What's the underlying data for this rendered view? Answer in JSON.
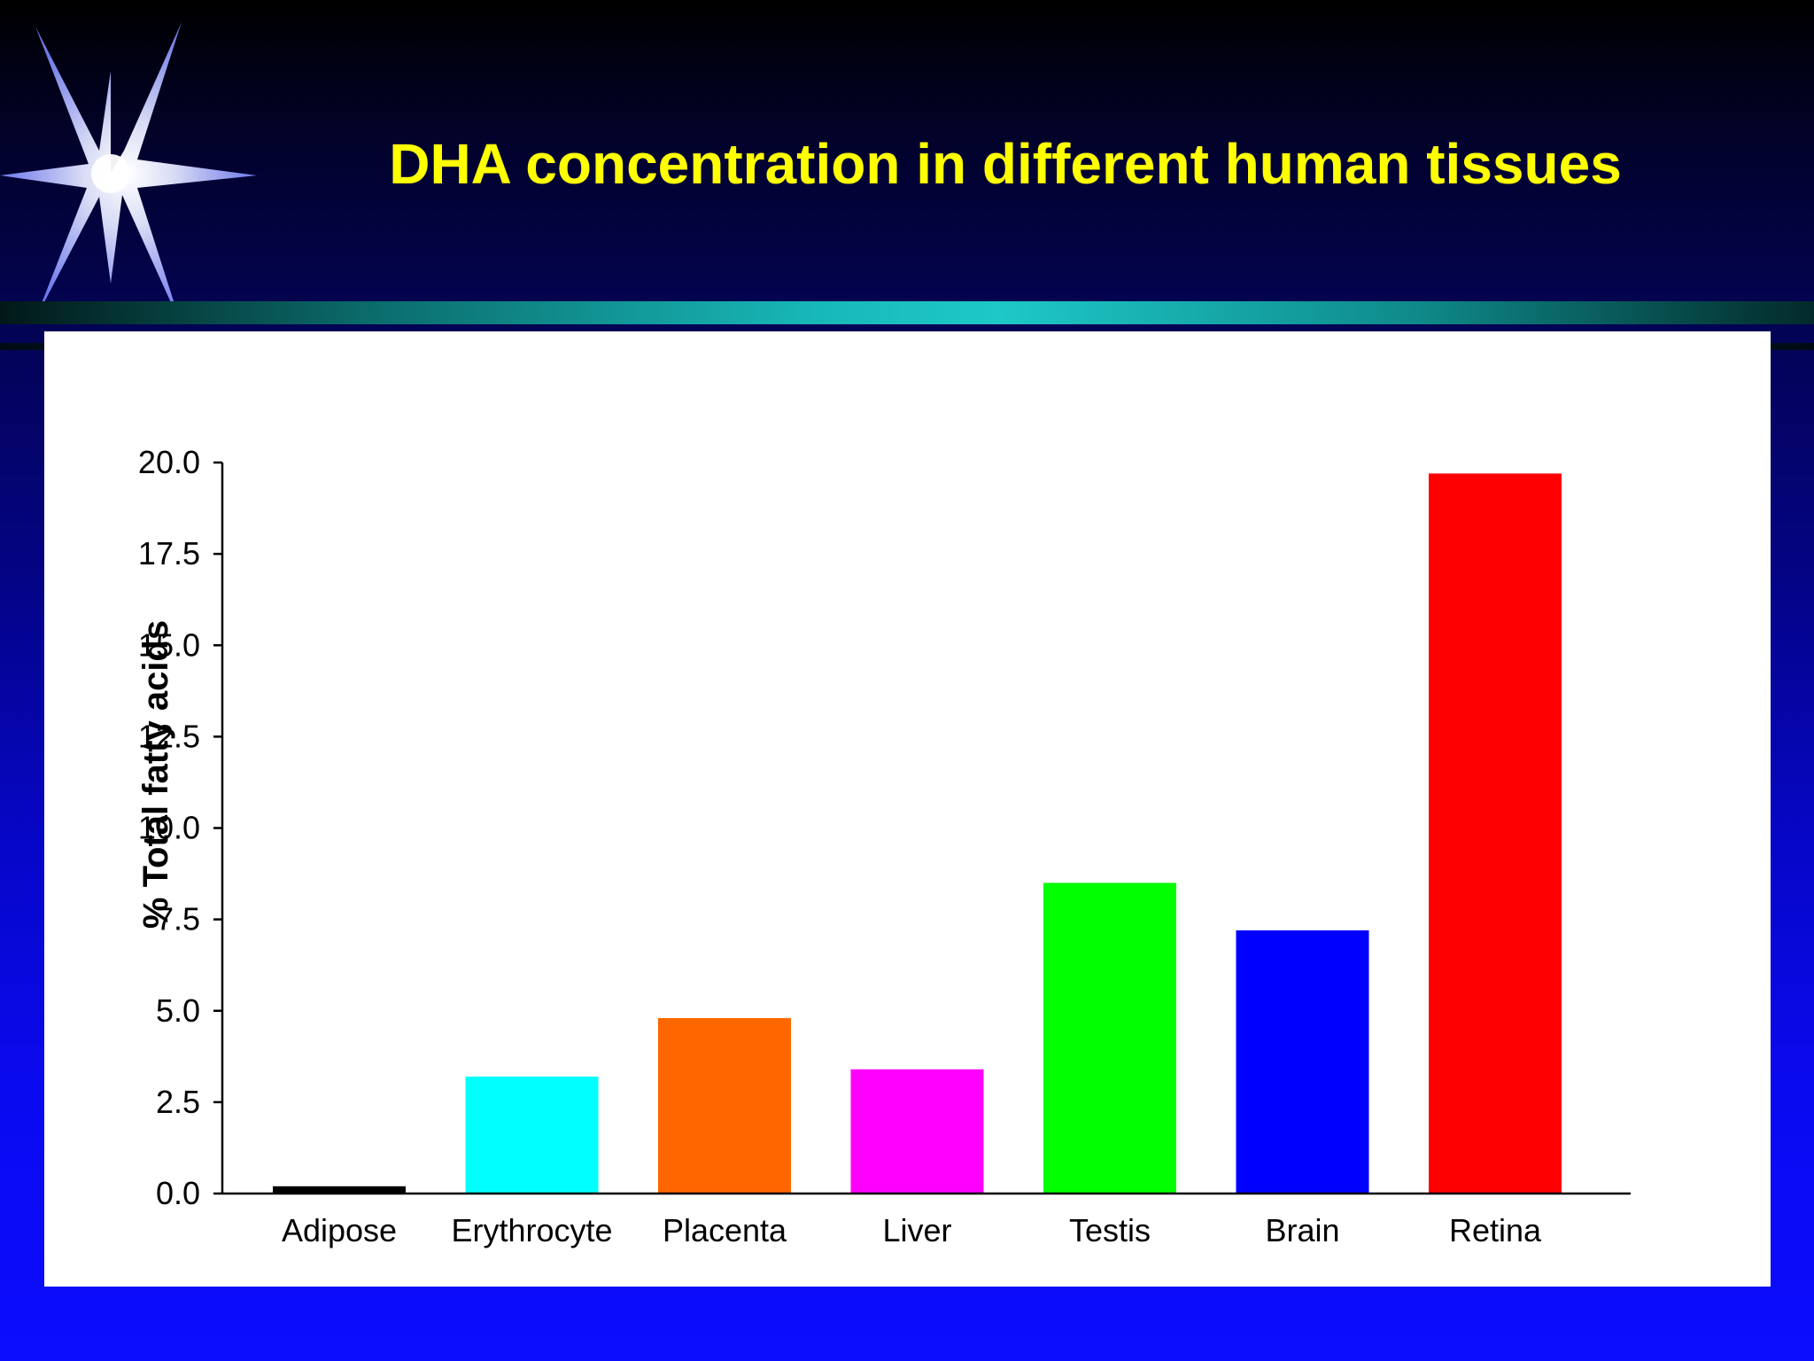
{
  "slide": {
    "title": "DHA concentration in different human tissues"
  },
  "decoration": {
    "icon": "starburst-icon"
  },
  "colors": {
    "title": "#ffff00",
    "band": "#1ec8c8",
    "panel": "#ffffff"
  },
  "chart_data": {
    "type": "bar",
    "categories": [
      "Adipose",
      "Erythrocyte",
      "Placenta",
      "Liver",
      "Testis",
      "Brain",
      "Retina"
    ],
    "values": [
      0.2,
      3.2,
      4.8,
      3.4,
      8.5,
      7.2,
      19.7
    ],
    "colors": [
      "#000000",
      "#00ffff",
      "#ff6600",
      "#ff00ff",
      "#00ff00",
      "#0000ff",
      "#ff0000"
    ],
    "ylabel": "% Total fatty acids",
    "xlabel": "",
    "ylim": [
      0,
      20
    ],
    "yticks": [
      "0.0",
      "2.5",
      "5.0",
      "7.5",
      "10.0",
      "12.5",
      "15.0",
      "17.5",
      "20.0"
    ],
    "grid": false,
    "legend": "none"
  }
}
